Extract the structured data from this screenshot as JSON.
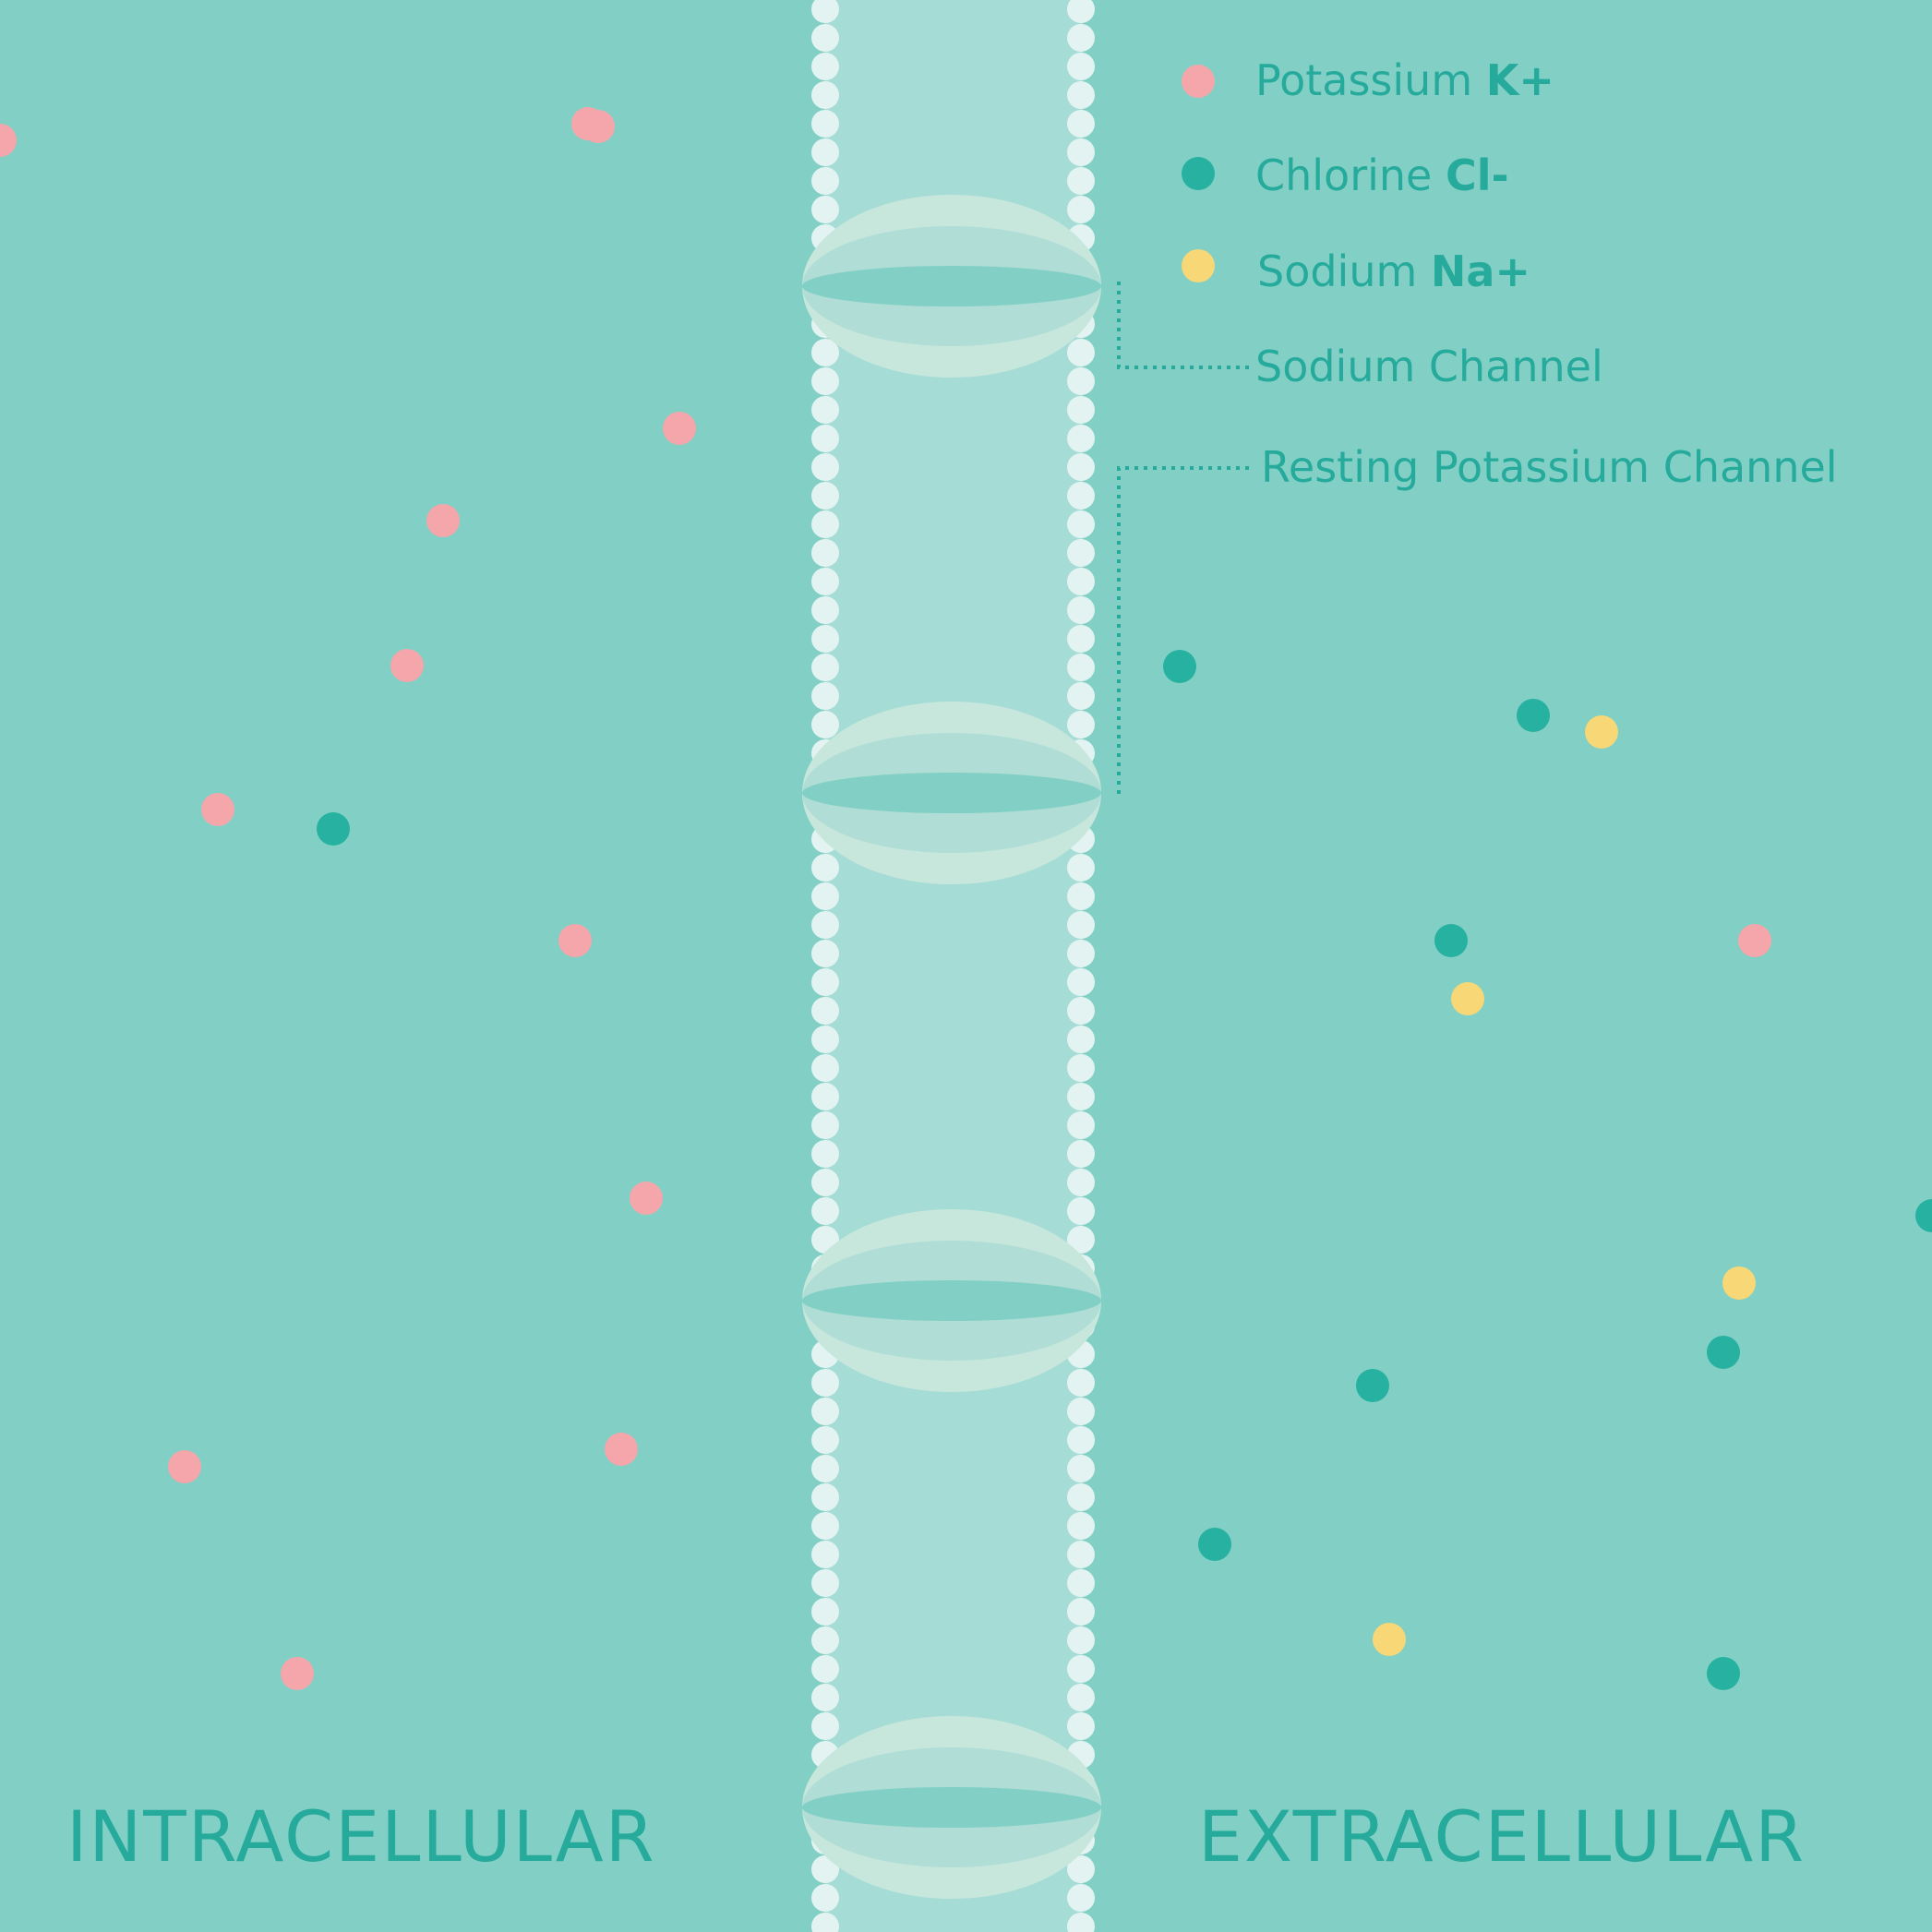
{
  "colors": {
    "background": "#82d0c5",
    "membrane": "#a6dcd6",
    "bead": "#e3f3f2",
    "accent": "#26aa9b",
    "potassium": "#f4a6ab",
    "chlorine": "#26b1a0",
    "sodium": "#f8d776",
    "channel_outer": "#c7e7dc",
    "channel_mid": "#b0ddd6",
    "channel_core": "#82d0c5"
  },
  "legend": [
    {
      "key": "potassium",
      "name": "Potassium ",
      "symbol": "K+"
    },
    {
      "key": "chlorine",
      "name": "Chlorine ",
      "symbol": "Cl-"
    },
    {
      "key": "sodium",
      "name": "Sodium ",
      "symbol": "Na+"
    }
  ],
  "callouts": {
    "sodium_channel": "Sodium Channel",
    "potassium_channel": "Resting Potassium Channel"
  },
  "regions": {
    "left": "INTRACELLULAR",
    "right": "EXTRACELLULAR"
  }
}
